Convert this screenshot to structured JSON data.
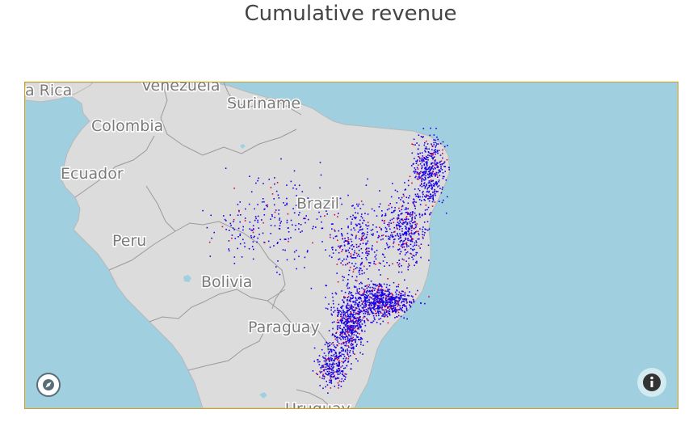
{
  "title": "Cumulative revenue",
  "map": {
    "labels": {
      "costa_rica": "a Rica",
      "venezuela": "Venezuela",
      "suriname": "Suriname",
      "colombia": "Colombia",
      "ecuador": "Ecuador",
      "brazil": "Brazil",
      "peru": "Peru",
      "bolivia": "Bolivia",
      "paraguay": "Paraguay",
      "uruguay": "Uruguay"
    },
    "colors": {
      "ocean": "#a0d0e0",
      "land": "#dcdcdc",
      "border": "#9a9a9a",
      "frame": "#d4a017",
      "point_primary": "#1a00e6",
      "point_secondary": "#e0003a"
    },
    "controls": {
      "compass": "compass-icon",
      "info": "info-icon"
    }
  }
}
